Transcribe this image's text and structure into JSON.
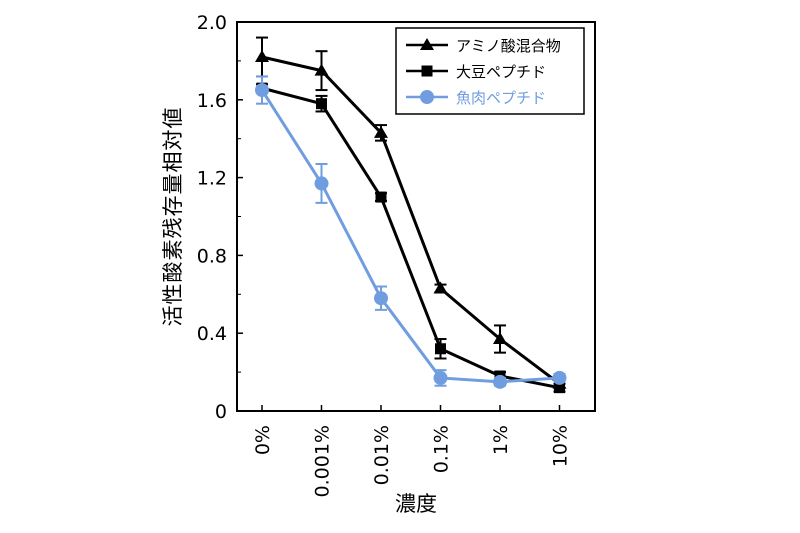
{
  "chart_data": {
    "type": "line",
    "xlabel": "濃度",
    "ylabel": "活性酸素残存量相対値",
    "categories": [
      "0%",
      "0.001%",
      "0.01%",
      "0.1%",
      "1%",
      "10%"
    ],
    "ylim": [
      0,
      2.0
    ],
    "yticks": [
      "0",
      "0.4",
      "0.8",
      "1.2",
      "1.6",
      "2.0"
    ],
    "ytick_values": [
      0,
      0.4,
      0.8,
      1.2,
      1.6,
      2.0
    ],
    "grid": false,
    "legend_position": "top-right",
    "series": [
      {
        "name": "アミノ酸混合物",
        "marker": "triangle",
        "color": "#000000",
        "values": [
          1.82,
          1.75,
          1.43,
          0.63,
          0.37,
          0.14
        ],
        "errors": [
          0.1,
          0.1,
          0.04,
          0.02,
          0.07,
          0.04
        ]
      },
      {
        "name": "大豆ペプチド",
        "marker": "square",
        "color": "#000000",
        "values": [
          1.66,
          1.58,
          1.1,
          0.32,
          0.18,
          0.12
        ],
        "errors": [
          0.02,
          0.04,
          0.02,
          0.05,
          0.02,
          0.02
        ]
      },
      {
        "name": "魚肉ペプチド",
        "marker": "circle",
        "color": "#6f9de0",
        "values": [
          1.65,
          1.17,
          0.58,
          0.17,
          0.15,
          0.17
        ],
        "errors": [
          0.07,
          0.1,
          0.06,
          0.04,
          0.02,
          0.02
        ]
      }
    ]
  }
}
